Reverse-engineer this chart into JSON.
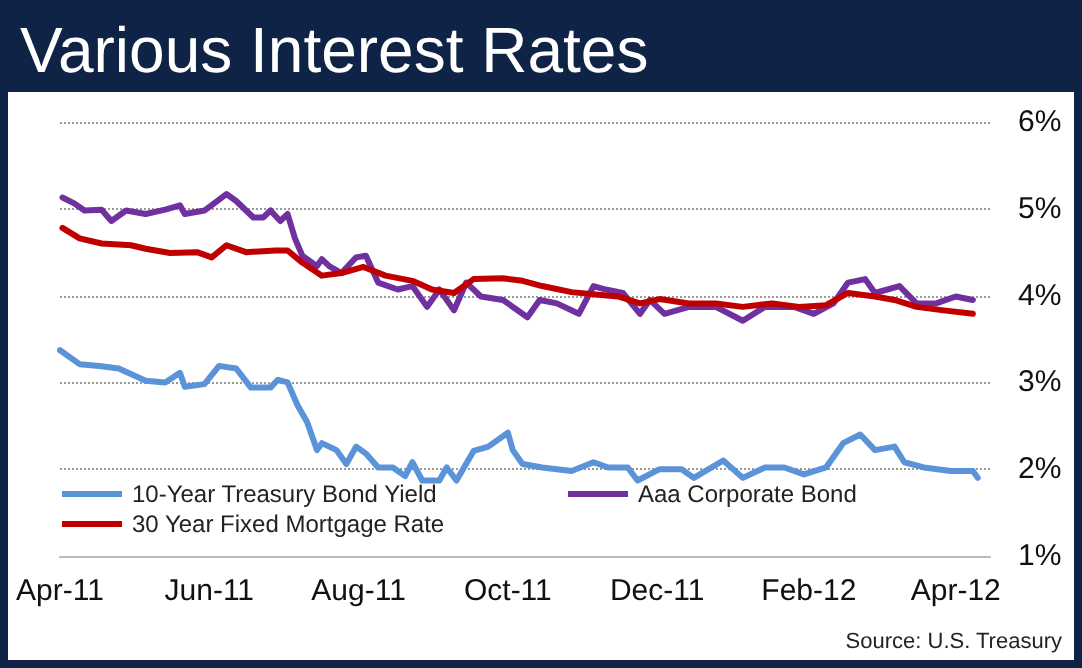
{
  "chart_data": {
    "type": "line",
    "title": "Various Interest Rates",
    "xlim": [
      "2011-04-01",
      "2012-04-15"
    ],
    "xticks": [
      {
        "value": "2011-04-01",
        "label": "Apr-11"
      },
      {
        "value": "2011-06-01",
        "label": "Jun-11"
      },
      {
        "value": "2011-08-01",
        "label": "Aug-11"
      },
      {
        "value": "2011-10-01",
        "label": "Oct-11"
      },
      {
        "value": "2011-12-01",
        "label": "Dec-11"
      },
      {
        "value": "2012-02-01",
        "label": "Feb-12"
      },
      {
        "value": "2012-04-01",
        "label": "Apr-12"
      }
    ],
    "ylim": [
      1,
      6
    ],
    "yticks": [
      {
        "value": 1,
        "label": "1%"
      },
      {
        "value": 2,
        "label": "2%"
      },
      {
        "value": 3,
        "label": "3%"
      },
      {
        "value": 4,
        "label": "4%"
      },
      {
        "value": 5,
        "label": "5%"
      },
      {
        "value": 6,
        "label": "6%"
      }
    ],
    "grid": "y",
    "legend": "bottom",
    "marker": "none",
    "line_style": "solid",
    "annotations": [
      "Source:  U.S. Treasury"
    ],
    "series": [
      {
        "name": "10-Year Treasury Bond Yield",
        "color": "#5b93d8",
        "x": [
          "2011-04-01",
          "2011-04-09",
          "2011-04-17",
          "2011-04-25",
          "2011-05-06",
          "2011-05-14",
          "2011-05-20",
          "2011-05-22",
          "2011-05-30",
          "2011-06-05",
          "2011-06-12",
          "2011-06-18",
          "2011-06-26",
          "2011-06-29",
          "2011-07-03",
          "2011-07-07",
          "2011-07-11",
          "2011-07-15",
          "2011-07-17",
          "2011-07-23",
          "2011-07-27",
          "2011-07-31",
          "2011-08-04",
          "2011-08-09",
          "2011-08-15",
          "2011-08-20",
          "2011-08-23",
          "2011-08-27",
          "2011-09-03",
          "2011-09-06",
          "2011-09-10",
          "2011-09-17",
          "2011-09-23",
          "2011-10-01",
          "2011-10-03",
          "2011-10-07",
          "2011-10-15",
          "2011-10-27",
          "2011-11-05",
          "2011-11-11",
          "2011-11-19",
          "2011-11-23",
          "2011-12-02",
          "2011-12-11",
          "2011-12-16",
          "2011-12-28",
          "2012-01-05",
          "2012-01-14",
          "2012-01-22",
          "2012-01-30",
          "2012-02-08",
          "2012-02-15",
          "2012-02-22",
          "2012-02-28",
          "2012-03-07",
          "2012-03-11",
          "2012-03-19",
          "2012-03-30",
          "2012-04-08",
          "2012-04-10"
        ],
        "values": [
          3.37,
          3.21,
          3.19,
          3.16,
          3.02,
          3.0,
          3.11,
          2.95,
          2.98,
          3.19,
          3.16,
          2.94,
          2.94,
          3.03,
          3.0,
          2.74,
          2.54,
          2.22,
          2.3,
          2.22,
          2.06,
          2.26,
          2.18,
          2.02,
          2.02,
          1.92,
          2.08,
          1.87,
          1.87,
          2.02,
          1.87,
          2.21,
          2.26,
          2.42,
          2.22,
          2.06,
          2.02,
          1.98,
          2.08,
          2.02,
          2.02,
          1.87,
          2.0,
          2.0,
          1.9,
          2.1,
          1.9,
          2.02,
          2.02,
          1.94,
          2.02,
          2.3,
          2.4,
          2.22,
          2.26,
          2.08,
          2.02,
          1.98,
          1.98,
          1.9
        ]
      },
      {
        "name": "Aaa Corporate Bond",
        "color": "#7030a0",
        "x": [
          "2011-04-02",
          "2011-04-07",
          "2011-04-11",
          "2011-04-18",
          "2011-04-22",
          "2011-04-28",
          "2011-05-06",
          "2011-05-14",
          "2011-05-20",
          "2011-05-22",
          "2011-05-30",
          "2011-06-08",
          "2011-06-12",
          "2011-06-19",
          "2011-06-23",
          "2011-06-26",
          "2011-06-30",
          "2011-07-03",
          "2011-07-06",
          "2011-07-09",
          "2011-07-15",
          "2011-07-17",
          "2011-07-20",
          "2011-07-25",
          "2011-07-31",
          "2011-08-04",
          "2011-08-09",
          "2011-08-17",
          "2011-08-23",
          "2011-08-29",
          "2011-09-03",
          "2011-09-09",
          "2011-09-14",
          "2011-09-20",
          "2011-09-29",
          "2011-10-01",
          "2011-10-09",
          "2011-10-14",
          "2011-10-21",
          "2011-10-30",
          "2011-11-05",
          "2011-11-10",
          "2011-11-17",
          "2011-11-24",
          "2011-11-28",
          "2011-12-04",
          "2011-12-14",
          "2011-12-25",
          "2012-01-05",
          "2012-01-14",
          "2012-01-26",
          "2012-02-03",
          "2012-02-11",
          "2012-02-17",
          "2012-02-24",
          "2012-02-28",
          "2012-03-09",
          "2012-03-16",
          "2012-03-24",
          "2012-04-01",
          "2012-04-08"
        ],
        "values": [
          5.13,
          5.06,
          4.98,
          4.99,
          4.86,
          4.98,
          4.94,
          4.99,
          5.04,
          4.94,
          4.98,
          5.17,
          5.09,
          4.9,
          4.9,
          4.98,
          4.86,
          4.94,
          4.66,
          4.46,
          4.34,
          4.42,
          4.34,
          4.26,
          4.44,
          4.46,
          4.15,
          4.07,
          4.11,
          3.87,
          4.07,
          3.83,
          4.15,
          3.99,
          3.95,
          3.91,
          3.75,
          3.95,
          3.91,
          3.79,
          4.11,
          4.07,
          4.03,
          3.79,
          3.95,
          3.79,
          3.87,
          3.87,
          3.71,
          3.87,
          3.87,
          3.79,
          3.91,
          4.15,
          4.19,
          4.03,
          4.11,
          3.91,
          3.91,
          3.99,
          3.95
        ]
      },
      {
        "name": "30 Year Fixed Mortgage Rate",
        "color": "#c00000",
        "x": [
          "2011-04-02",
          "2011-04-09",
          "2011-04-18",
          "2011-04-30",
          "2011-05-06",
          "2011-05-16",
          "2011-05-27",
          "2011-06-02",
          "2011-06-08",
          "2011-06-16",
          "2011-06-28",
          "2011-07-03",
          "2011-07-09",
          "2011-07-17",
          "2011-07-25",
          "2011-08-03",
          "2011-08-12",
          "2011-08-23",
          "2011-08-31",
          "2011-09-09",
          "2011-09-17",
          "2011-09-29",
          "2011-10-07",
          "2011-10-15",
          "2011-10-27",
          "2011-11-07",
          "2011-11-15",
          "2011-11-24",
          "2011-12-02",
          "2011-12-14",
          "2011-12-25",
          "2012-01-05",
          "2012-01-17",
          "2012-01-28",
          "2012-02-08",
          "2012-02-17",
          "2012-02-28",
          "2012-03-07",
          "2012-03-16",
          "2012-03-27",
          "2012-04-08"
        ],
        "values": [
          4.78,
          4.66,
          4.6,
          4.58,
          4.54,
          4.49,
          4.5,
          4.44,
          4.58,
          4.5,
          4.52,
          4.52,
          4.38,
          4.23,
          4.26,
          4.33,
          4.23,
          4.17,
          4.07,
          4.03,
          4.19,
          4.2,
          4.17,
          4.11,
          4.04,
          4.01,
          3.99,
          3.91,
          3.96,
          3.91,
          3.91,
          3.87,
          3.91,
          3.87,
          3.89,
          4.03,
          3.99,
          3.95,
          3.87,
          3.83,
          3.79
        ]
      }
    ]
  }
}
